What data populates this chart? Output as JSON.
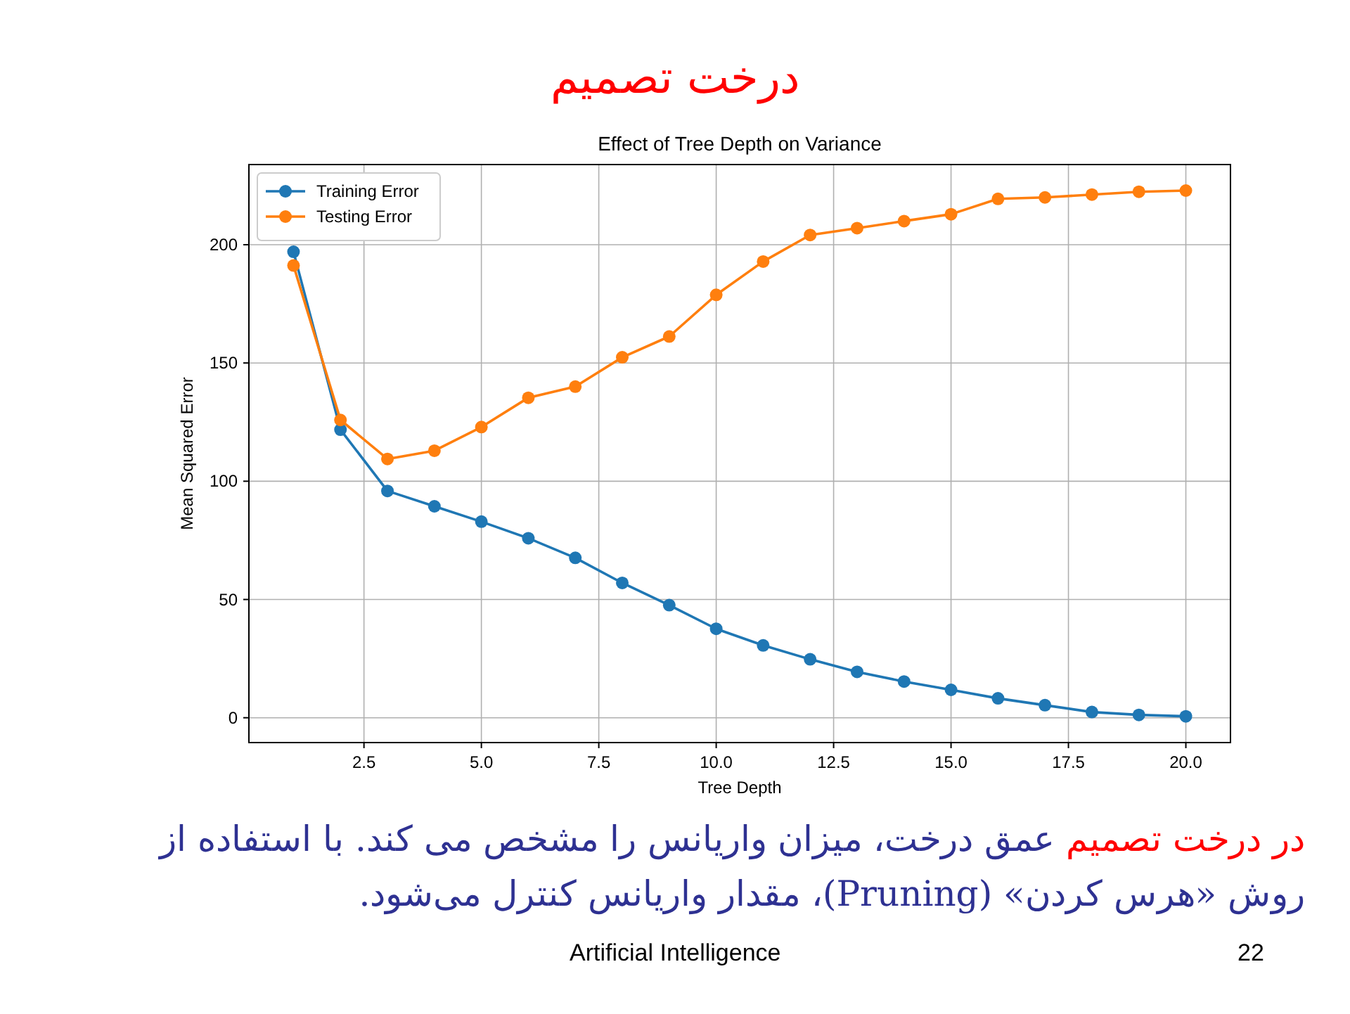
{
  "chart_data": {
    "type": "line",
    "title": "درخت تصمیم",
    "subtitle": "Effect of Tree Depth on Variance",
    "xlabel": "Tree Depth",
    "ylabel": "Mean Squared Error",
    "x": [
      1,
      2,
      3,
      4,
      5,
      6,
      7,
      8,
      9,
      10,
      11,
      12,
      13,
      14,
      15,
      16,
      17,
      18,
      19,
      20
    ],
    "series": [
      {
        "name": "Training Error",
        "color": "#1f77b4",
        "values": [
          197,
          121.8,
          95.9,
          89.4,
          82.9,
          75.9,
          67.6,
          57,
          47.6,
          37.6,
          30.6,
          24.7,
          19.4,
          15.3,
          11.8,
          8.2,
          5.3,
          2.4,
          1.2,
          0.6
        ]
      },
      {
        "name": "Testing Error",
        "color": "#ff7f0e",
        "values": [
          191.2,
          125.9,
          109.4,
          112.9,
          122.9,
          135.3,
          140,
          152.4,
          161.2,
          178.8,
          192.9,
          204.1,
          207,
          210,
          212.9,
          219.4,
          220,
          221.2,
          222.4,
          222.9
        ]
      }
    ],
    "xlim": [
      0.05,
      20.95
    ],
    "ylim": [
      -10.5,
      233.9
    ],
    "xticks": [
      {
        "value": 2.5,
        "label": "2.5"
      },
      {
        "value": 5,
        "label": "5.0"
      },
      {
        "value": 7.5,
        "label": "7.5"
      },
      {
        "value": 10,
        "label": "10.0"
      },
      {
        "value": 12.5,
        "label": "12.5"
      },
      {
        "value": 15,
        "label": "15.0"
      },
      {
        "value": 17.5,
        "label": "17.5"
      },
      {
        "value": 20,
        "label": "20.0"
      }
    ],
    "yticks": [
      0,
      50,
      100,
      150,
      200
    ],
    "grid": true,
    "legend": "top left",
    "marker": "circle",
    "line_style": "solid",
    "annotations": [
      "در درخت تصمیم",
      "عمق درخت، میزان واریانس را مشخص می کند. با استفاده از روش «هرس کردن» (Pruning)، مقدار واریانس کنترل می‌شود.",
      "Artificial Intelligence",
      "22"
    ]
  }
}
